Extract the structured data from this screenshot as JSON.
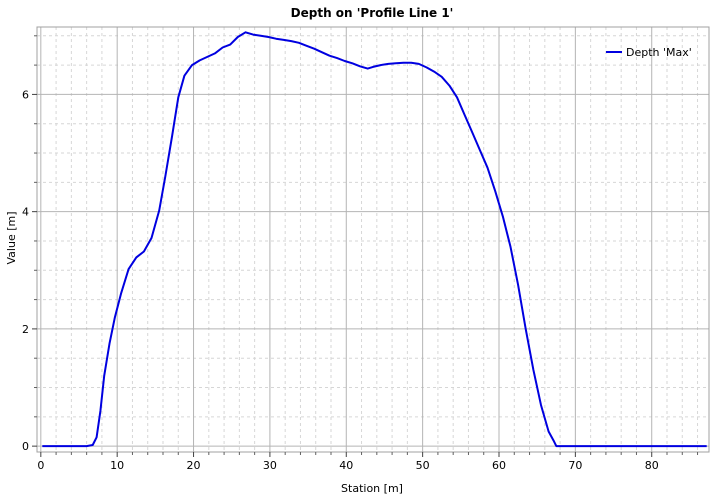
{
  "chart_data": {
    "type": "line",
    "title": "Depth on 'Profile Line 1'",
    "xlabel": "Station [m]",
    "ylabel": "Value [m]",
    "xlim": [
      -0.5,
      87.5
    ],
    "ylim": [
      -0.1,
      7.15
    ],
    "x_ticks": [
      0,
      10,
      20,
      30,
      40,
      50,
      60,
      70,
      80
    ],
    "y_ticks": [
      0,
      2,
      4,
      6
    ],
    "x_minor_step": 2,
    "y_minor_step": 0.5,
    "grid": true,
    "legend_position": "top-right",
    "series": [
      {
        "name": "Depth 'Max'",
        "color": "#0000e0",
        "x": [
          0.2,
          2,
          4,
          6,
          6.8,
          7.3,
          7.8,
          8.3,
          9,
          9.7,
          10.5,
          11.5,
          12.5,
          13.5,
          14.5,
          15.5,
          16.3,
          17.2,
          18,
          18.8,
          19.8,
          20.8,
          21.8,
          22.8,
          23.8,
          24.8,
          25.8,
          26.8,
          27.8,
          28.8,
          29.8,
          30.8,
          31.8,
          32.8,
          33.8,
          34.8,
          35.8,
          36.8,
          37.8,
          38.8,
          39.8,
          40.8,
          41.8,
          42.8,
          43.5,
          44.5,
          45.5,
          46.5,
          47.5,
          48.5,
          49.5,
          50.5,
          51.5,
          52.5,
          53.5,
          54.5,
          55.5,
          56.5,
          57.5,
          58.5,
          59.5,
          60.5,
          61.5,
          62.5,
          63.5,
          64.5,
          65.5,
          66.5,
          67.2,
          67.5,
          68,
          70,
          75,
          80,
          85,
          87.2
        ],
        "values": [
          0.0,
          0.0,
          0.0,
          0.0,
          0.02,
          0.15,
          0.6,
          1.2,
          1.75,
          2.2,
          2.6,
          3.02,
          3.22,
          3.32,
          3.55,
          4.02,
          4.6,
          5.3,
          5.95,
          6.32,
          6.5,
          6.58,
          6.64,
          6.7,
          6.8,
          6.85,
          6.98,
          7.06,
          7.02,
          7.0,
          6.98,
          6.95,
          6.93,
          6.91,
          6.88,
          6.83,
          6.78,
          6.72,
          6.66,
          6.62,
          6.57,
          6.53,
          6.48,
          6.44,
          6.47,
          6.5,
          6.52,
          6.53,
          6.54,
          6.54,
          6.52,
          6.46,
          6.39,
          6.3,
          6.15,
          5.95,
          5.65,
          5.35,
          5.05,
          4.75,
          4.35,
          3.92,
          3.4,
          2.75,
          2.0,
          1.3,
          0.7,
          0.25,
          0.08,
          0.0,
          0.0,
          0.0,
          0.0,
          0.0,
          0.0,
          0.0
        ]
      }
    ]
  }
}
